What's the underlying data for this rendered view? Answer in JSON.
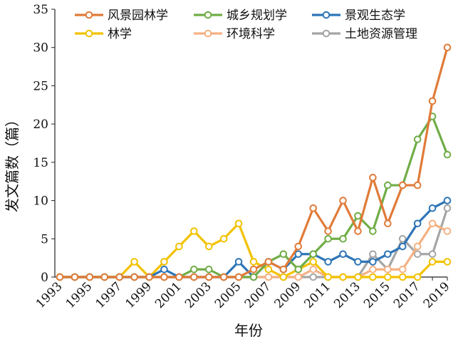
{
  "chart_data": {
    "type": "line",
    "xlabel": "年份",
    "ylabel": "发文篇数（篇）",
    "ylim": [
      0,
      35
    ],
    "yticks": [
      0,
      5,
      10,
      15,
      20,
      25,
      30,
      35
    ],
    "x": [
      1993,
      1994,
      1995,
      1996,
      1997,
      1998,
      1999,
      2000,
      2001,
      2002,
      2003,
      2004,
      2005,
      2006,
      2007,
      2008,
      2009,
      2010,
      2011,
      2012,
      2013,
      2014,
      2015,
      2016,
      2017,
      2018,
      2019
    ],
    "xtick_labels": [
      "1993",
      "1995",
      "1997",
      "1999",
      "2001",
      "2003",
      "2005",
      "2007",
      "2009",
      "2011",
      "2013",
      "2015",
      "2017",
      "2019"
    ],
    "legend_placement": "top",
    "grid": false,
    "series": [
      {
        "name": "风景园林学",
        "color": "#E07B39",
        "values": [
          0,
          0,
          0,
          0,
          0,
          0,
          0,
          0,
          0,
          0,
          0,
          0,
          0,
          1,
          2,
          1,
          4,
          9,
          6,
          10,
          6,
          13,
          7,
          12,
          12,
          23,
          30
        ]
      },
      {
        "name": "城乡规划学",
        "color": "#70AD47",
        "values": [
          0,
          0,
          0,
          0,
          0,
          0,
          0,
          0,
          0,
          1,
          1,
          0,
          0,
          0,
          2,
          3,
          1,
          3,
          5,
          5,
          8,
          6,
          12,
          12,
          18,
          21,
          16
        ]
      },
      {
        "name": "景观生态学",
        "color": "#2E75B6",
        "values": [
          0,
          0,
          0,
          0,
          0,
          0,
          0,
          1,
          0,
          0,
          0,
          0,
          2,
          0,
          2,
          1,
          3,
          3,
          2,
          3,
          2,
          2,
          3,
          4,
          7,
          9,
          10
        ]
      },
      {
        "name": "林学",
        "color": "#F2C200",
        "values": [
          0,
          0,
          0,
          0,
          0,
          2,
          0,
          2,
          4,
          6,
          4,
          5,
          7,
          2,
          1,
          0,
          1,
          2,
          0,
          0,
          0,
          0,
          0,
          0,
          0,
          2,
          2
        ]
      },
      {
        "name": "环境科学",
        "color": "#F4B183",
        "values": [
          0,
          0,
          0,
          0,
          0,
          0,
          0,
          0,
          0,
          0,
          0,
          0,
          0,
          0,
          0,
          0,
          0,
          1,
          0,
          0,
          0,
          1,
          1,
          1,
          4,
          7,
          6
        ]
      },
      {
        "name": "土地资源管理",
        "color": "#A5A5A5",
        "values": [
          0,
          0,
          0,
          0,
          0,
          0,
          0,
          0,
          0,
          0,
          0,
          0,
          0,
          0,
          0,
          0,
          0,
          0,
          0,
          0,
          0,
          3,
          1,
          5,
          3,
          3,
          9
        ]
      }
    ]
  }
}
